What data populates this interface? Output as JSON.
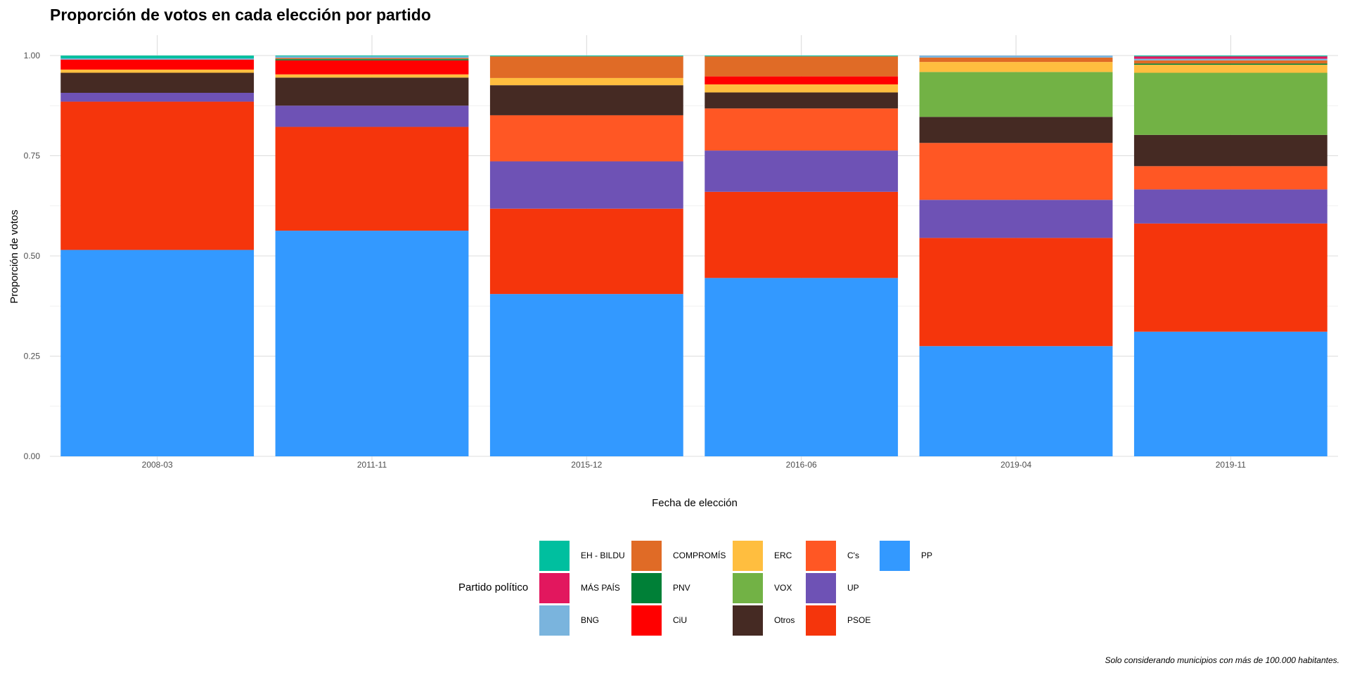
{
  "chart_data": {
    "type": "bar",
    "stacked": true,
    "title": "Proporción de votos en cada elección por partido",
    "xlabel": "Fecha de elección",
    "ylabel": "Proporción de votos",
    "ylim": [
      0,
      1
    ],
    "yticks": [
      "0.00",
      "0.25",
      "0.50",
      "0.75",
      "1.00"
    ],
    "categories": [
      "2008-03",
      "2011-11",
      "2015-12",
      "2016-06",
      "2019-04",
      "2019-11"
    ],
    "grid": true,
    "legend_position": "bottom",
    "legend_title": "Partido político",
    "caption": "Solo considerando municipios con más de 100.000 habitantes.",
    "series": [
      {
        "name": "PP",
        "color": "#3399FF",
        "values": [
          0.515,
          0.563,
          0.405,
          0.445,
          0.275,
          0.311
        ]
      },
      {
        "name": "PSOE",
        "color": "#F5350C",
        "values": [
          0.37,
          0.259,
          0.213,
          0.215,
          0.27,
          0.27
        ]
      },
      {
        "name": "UP",
        "color": "#6E52B5",
        "values": [
          0.022,
          0.053,
          0.118,
          0.103,
          0.095,
          0.085
        ]
      },
      {
        "name": "C's",
        "color": "#FF5724",
        "values": [
          0.0,
          0.0,
          0.115,
          0.105,
          0.142,
          0.058
        ]
      },
      {
        "name": "Otros",
        "color": "#452A23",
        "values": [
          0.05,
          0.07,
          0.075,
          0.04,
          0.065,
          0.078
        ]
      },
      {
        "name": "VOX",
        "color": "#72B245",
        "values": [
          0.0,
          0.0,
          0.0,
          0.0,
          0.112,
          0.155
        ]
      },
      {
        "name": "ERC",
        "color": "#FFBE3F",
        "values": [
          0.008,
          0.008,
          0.018,
          0.02,
          0.025,
          0.02
        ]
      },
      {
        "name": "CiU",
        "color": "#FF0000",
        "values": [
          0.025,
          0.035,
          0.0,
          0.02,
          0.0,
          0.0
        ]
      },
      {
        "name": "PNV",
        "color": "#008037",
        "values": [
          0.0,
          0.003,
          0.0,
          0.0,
          0.0,
          0.003
        ]
      },
      {
        "name": "COMPROMÍS",
        "color": "#E06B26",
        "values": [
          0.0,
          0.003,
          0.054,
          0.05,
          0.011,
          0.008
        ]
      },
      {
        "name": "BNG",
        "color": "#7AB4DD",
        "values": [
          0.003,
          0.004,
          0.0,
          0.0,
          0.005,
          0.004
        ]
      },
      {
        "name": "MÁS PAÍS",
        "color": "#E2175E",
        "values": [
          0.0,
          0.0,
          0.0,
          0.0,
          0.0,
          0.006
        ]
      },
      {
        "name": "EH - BILDU",
        "color": "#00BF9F",
        "values": [
          0.007,
          0.002,
          0.002,
          0.002,
          0.0,
          0.002
        ]
      }
    ],
    "legend_order": [
      "EH - BILDU",
      "MÁS PAÍS",
      "BNG",
      "COMPROMÍS",
      "PNV",
      "CiU",
      "ERC",
      "VOX",
      "Otros",
      "C's",
      "UP",
      "PSOE",
      "PP"
    ]
  }
}
